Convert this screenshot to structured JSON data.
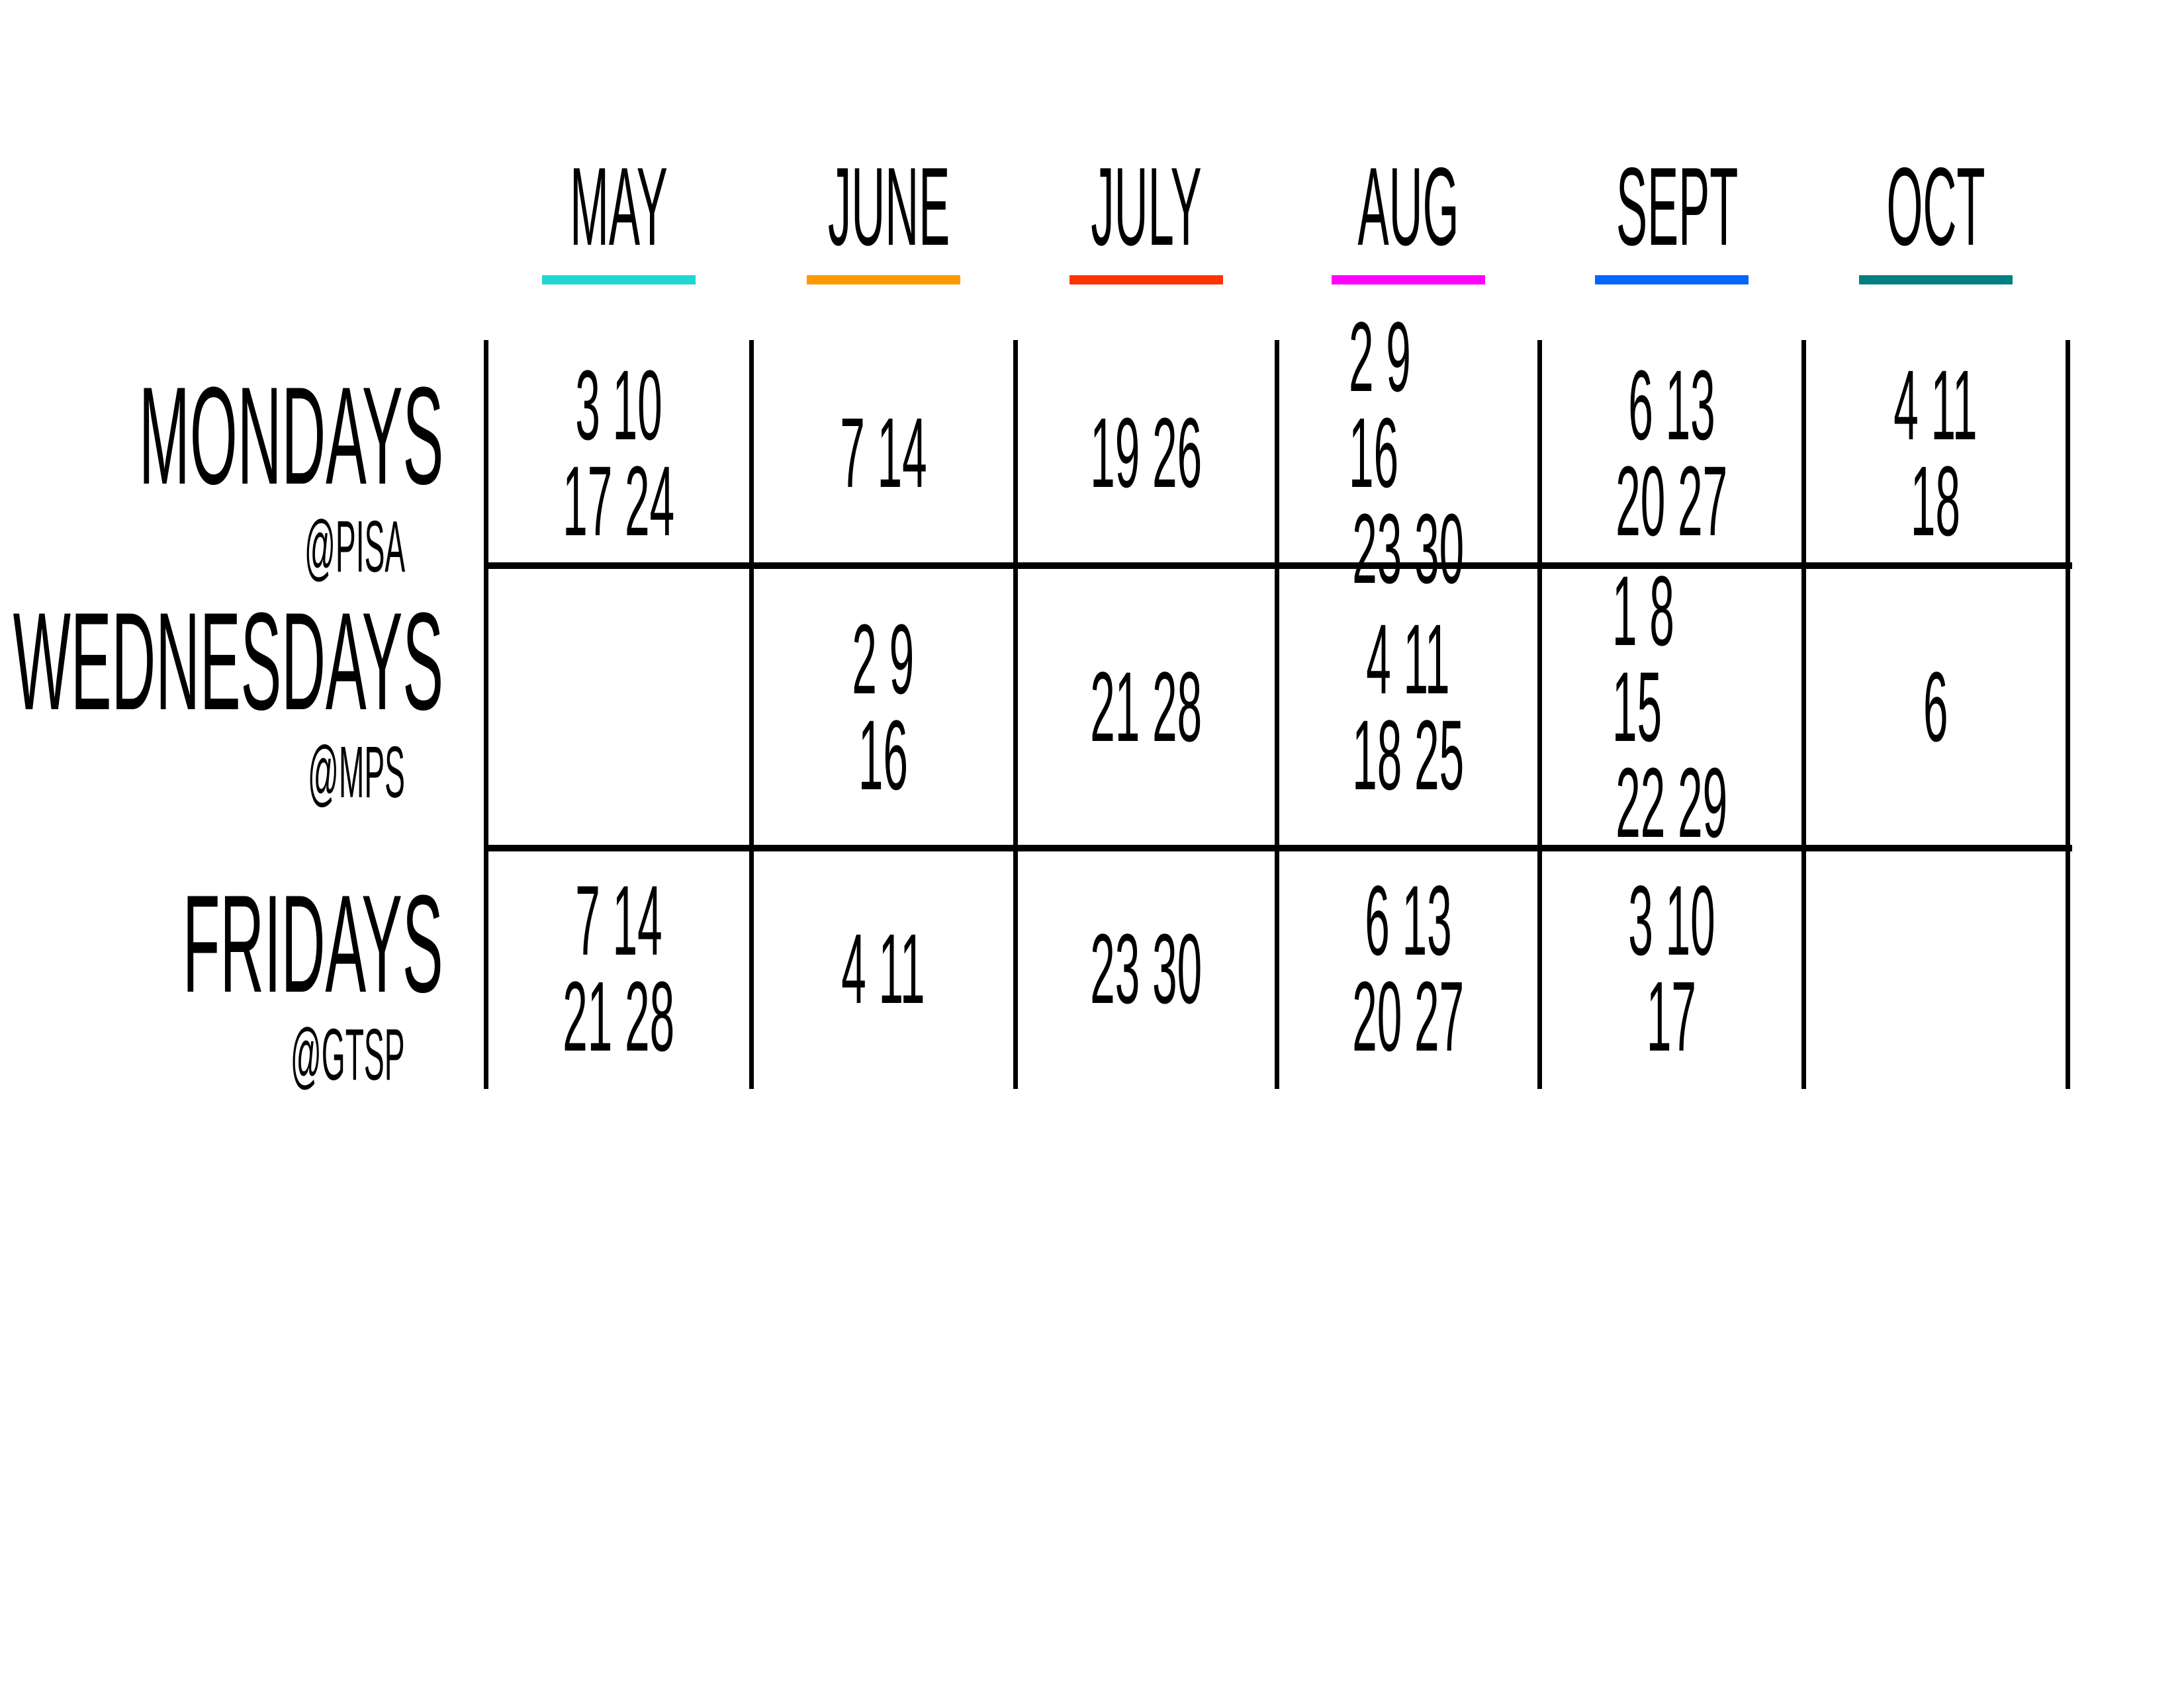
{
  "months": [
    {
      "label": "MAY",
      "color": "#1fd6d0"
    },
    {
      "label": "JUNE",
      "color": "#ff9900"
    },
    {
      "label": "JULY",
      "color": "#ff3300"
    },
    {
      "label": "AUG",
      "color": "#ff00ff"
    },
    {
      "label": "SEPT",
      "color": "#0066ff"
    },
    {
      "label": "OCT",
      "color": "#008080"
    }
  ],
  "rows": [
    {
      "day": "MONDAYS",
      "location": "@PISA",
      "cells": [
        [
          "3 10",
          "17 24"
        ],
        [
          "7 14"
        ],
        [
          "19 26"
        ],
        [
          "2 9 16",
          "23 30"
        ],
        [
          "6 13",
          "20 27"
        ],
        [
          "4 11",
          "18"
        ]
      ]
    },
    {
      "day": "WEDNESDAYS",
      "location": "@MPS",
      "cells": [
        [],
        [
          "2 9",
          "16"
        ],
        [
          "21 28"
        ],
        [
          "4 11",
          "18 25"
        ],
        [
          "1 8 15",
          "22 29"
        ],
        [
          "6"
        ]
      ]
    },
    {
      "day": "FRIDAYS",
      "location": "@GTSP",
      "cells": [
        [
          "7 14",
          "21 28"
        ],
        [
          "4 11"
        ],
        [
          "23 30"
        ],
        [
          "6 13",
          "20 27"
        ],
        [
          "3 10",
          "17"
        ],
        []
      ]
    }
  ]
}
